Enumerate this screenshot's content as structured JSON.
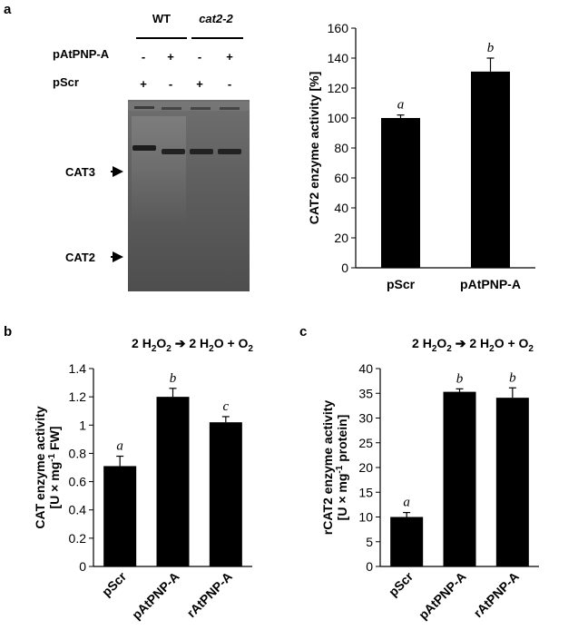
{
  "panels": {
    "a": "a",
    "b": "b",
    "c": "c"
  },
  "gel": {
    "genotypes": [
      "WT",
      "cat2-2"
    ],
    "rows": [
      {
        "label": "pAtPNP-A",
        "signs": [
          "-",
          "+",
          "-",
          "+"
        ]
      },
      {
        "label": "pScr",
        "signs": [
          "+",
          "-",
          "+",
          "-"
        ]
      }
    ],
    "bands": [
      "CAT3",
      "CAT2"
    ]
  },
  "equations": {
    "b": {
      "prefix": "2 H",
      "sub1": "2",
      "mid1": "O",
      "sub2": "2",
      "mid2": " ➔ 2 H",
      "sub3": "2",
      "mid3": "O + O",
      "sub4": "2"
    },
    "c": {
      "prefix": "2 H",
      "sub1": "2",
      "mid1": "O",
      "sub2": "2",
      "mid2": " ➔ 2 H",
      "sub3": "2",
      "mid3": "O + O",
      "sub4": "2"
    }
  },
  "chart_data": [
    {
      "id": "a",
      "type": "bar",
      "categories": [
        "pScr",
        "pAtPNP-A"
      ],
      "values": [
        100,
        131
      ],
      "errors": [
        2,
        9
      ],
      "significance": [
        "a",
        "b"
      ],
      "ylabel": "CAT2 enzyme activity [%]",
      "ylim": [
        0,
        160
      ],
      "yticks": [
        "0",
        "20",
        "40",
        "60",
        "80",
        "100",
        "120",
        "140",
        "160"
      ],
      "bar_color": "#000000"
    },
    {
      "id": "b",
      "type": "bar",
      "categories": [
        "pScr",
        "pAtPNP-A",
        "rAtPNP-A"
      ],
      "values": [
        0.71,
        1.2,
        1.02
      ],
      "errors": [
        0.07,
        0.06,
        0.04
      ],
      "significance": [
        "a",
        "b",
        "c"
      ],
      "ylabel_line1": "CAT enzyme activity",
      "ylabel_line2_pre": "[U × mg",
      "ylabel_line2_sup": "-1",
      "ylabel_line2_post": " FW]",
      "ylim": [
        0,
        1.4
      ],
      "yticks": [
        "0",
        "0.2",
        "0.4",
        "0.6",
        "0.8",
        "1",
        "1.2",
        "1.4"
      ],
      "bar_color": "#000000"
    },
    {
      "id": "c",
      "type": "bar",
      "categories": [
        "pScr",
        "pAtPNP-A",
        "rAtPNP-A"
      ],
      "values": [
        10,
        35.3,
        34.1
      ],
      "errors": [
        0.9,
        0.6,
        2.0
      ],
      "significance": [
        "a",
        "b",
        "b"
      ],
      "ylabel_line1": "rCAT2 enzyme activity",
      "ylabel_line2_pre": "[U × mg",
      "ylabel_line2_sup": "-1",
      "ylabel_line2_post": " protein]",
      "ylim": [
        0,
        40
      ],
      "yticks": [
        "0",
        "5",
        "10",
        "15",
        "20",
        "25",
        "30",
        "35",
        "40"
      ],
      "bar_color": "#000000"
    }
  ]
}
